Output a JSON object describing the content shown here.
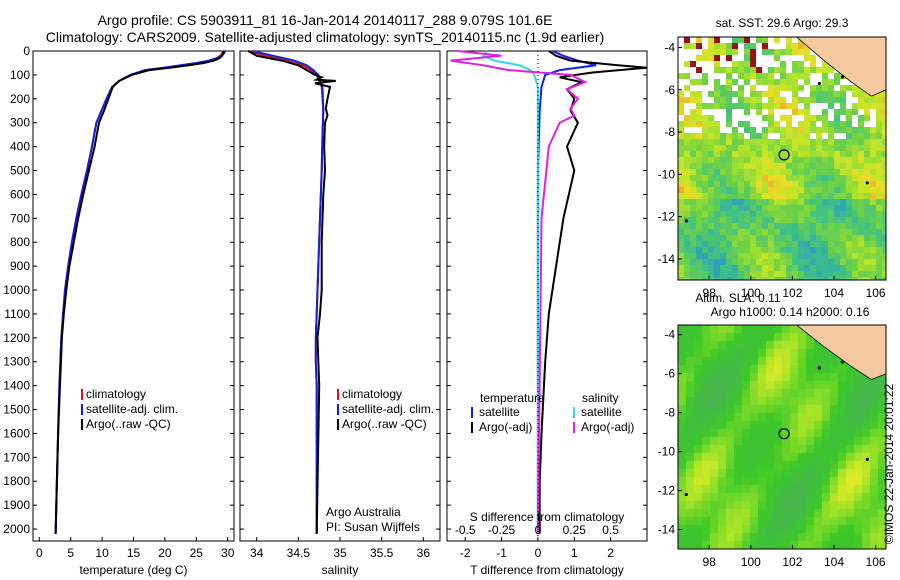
{
  "header": {
    "title_line1": "Argo profile: CS 5903911_81 16-Jan-2014 20140117_288 9.079S 101.6E",
    "title_line2": "Climatology: CARS2009. Satellite-adjusted climatology: synTS_20140115.nc (1.9d earlier)"
  },
  "colors": {
    "climatology": "#e01010",
    "satellite": "#1020e0",
    "argo": "#000000",
    "satellite_salinity": "#30d8e8",
    "argo_adj_salinity": "#e020e0",
    "land": "#f6c9a0"
  },
  "chart_data": [
    {
      "id": "temperature",
      "type": "line",
      "xlabel": "temperature (deg C)",
      "xlim": [
        -1,
        31
      ],
      "xticks": [
        0,
        5,
        10,
        15,
        20,
        25,
        30
      ],
      "ylim": [
        2050,
        0
      ],
      "yticks": [
        0,
        100,
        200,
        300,
        400,
        500,
        600,
        700,
        800,
        900,
        1000,
        1100,
        1200,
        1300,
        1400,
        1500,
        1600,
        1700,
        1800,
        1900,
        2000
      ],
      "legend": [
        "climatology",
        "satellite-adj. clim.",
        "Argo(..raw -QC)"
      ],
      "series": [
        {
          "name": "climatology",
          "x": [
            29.2,
            29.1,
            28.8,
            28.2,
            27.2,
            25.5,
            23,
            20.2,
            17,
            14.6,
            12.8,
            11.6,
            10.7,
            9.9,
            9.1,
            8.4,
            7.6,
            6.7,
            5.9,
            5.2,
            4.6,
            4.1,
            3.8,
            3.5,
            3.2,
            3.0,
            2.8,
            2.6
          ],
          "y": [
            0,
            10,
            20,
            30,
            40,
            50,
            60,
            70,
            80,
            100,
            125,
            150,
            200,
            250,
            300,
            400,
            500,
            600,
            700,
            800,
            900,
            1000,
            1100,
            1200,
            1400,
            1600,
            1800,
            2020
          ]
        },
        {
          "name": "satellite-adj. clim.",
          "x": [
            29.6,
            29.4,
            29.0,
            28.3,
            27.0,
            25.0,
            22.5,
            19.8,
            16.8,
            14.5,
            12.7,
            11.6,
            10.7,
            9.9,
            9.1,
            8.4,
            7.6,
            6.7,
            5.9,
            5.2,
            4.6,
            4.1,
            3.8,
            3.5,
            3.2,
            3.0,
            2.8,
            2.6
          ],
          "y": [
            0,
            10,
            20,
            30,
            40,
            50,
            60,
            70,
            80,
            100,
            125,
            150,
            200,
            250,
            300,
            400,
            500,
            600,
            700,
            800,
            900,
            1000,
            1100,
            1200,
            1400,
            1600,
            1800,
            2020
          ]
        },
        {
          "name": "Argo(..raw -QC)",
          "x": [
            29.3,
            29.3,
            29.1,
            28.7,
            27.8,
            26.2,
            23.8,
            20.8,
            17.5,
            14.7,
            12.7,
            11.7,
            11.0,
            10.3,
            9.5,
            8.8,
            7.9,
            7.0,
            6.2,
            5.5,
            4.8,
            4.3,
            3.9,
            3.6,
            3.3,
            3.0,
            2.8,
            2.6
          ],
          "y": [
            0,
            10,
            20,
            30,
            40,
            50,
            60,
            70,
            80,
            100,
            125,
            150,
            200,
            250,
            300,
            400,
            500,
            600,
            700,
            800,
            900,
            1000,
            1100,
            1200,
            1400,
            1600,
            1800,
            2020
          ]
        }
      ]
    },
    {
      "id": "salinity",
      "type": "line",
      "xlabel": "salinity",
      "xlim": [
        33.8,
        36.2
      ],
      "xticks": [
        34,
        34.5,
        35,
        35.5,
        36
      ],
      "ylim": [
        2050,
        0
      ],
      "legend": [
        "climatology",
        "satellite-adj. clim.",
        "Argo(..raw -QC)"
      ],
      "annotation": [
        "Argo Australia",
        "PI: Susan Wijffels"
      ],
      "series": [
        {
          "name": "climatology",
          "x": [
            33.9,
            34.1,
            34.35,
            34.55,
            34.65,
            34.72,
            34.78,
            34.8,
            34.79,
            34.78,
            34.76,
            34.74,
            34.72,
            34.71,
            34.71,
            34.72,
            34.72,
            34.72,
            34.72,
            34.72,
            34.72
          ],
          "y": [
            0,
            20,
            40,
            60,
            80,
            100,
            150,
            250,
            350,
            500,
            700,
            900,
            1100,
            1200,
            1300,
            1400,
            1500,
            1600,
            1700,
            1800,
            2020
          ]
        },
        {
          "name": "satellite-adj. clim.",
          "x": [
            33.95,
            34.2,
            34.45,
            34.6,
            34.68,
            34.74,
            34.79,
            34.8,
            34.79,
            34.78,
            34.76,
            34.74,
            34.72,
            34.71,
            34.71,
            34.72,
            34.72,
            34.72,
            34.72,
            34.72,
            34.72
          ],
          "y": [
            0,
            20,
            40,
            60,
            80,
            100,
            150,
            250,
            350,
            500,
            700,
            900,
            1100,
            1200,
            1300,
            1400,
            1500,
            1600,
            1700,
            1800,
            2020
          ]
        },
        {
          "name": "Argo(..raw -QC)",
          "x": [
            33.9,
            34.0,
            34.3,
            34.5,
            34.6,
            34.7,
            34.78,
            34.72,
            34.95,
            34.7,
            34.88,
            34.85,
            34.83,
            34.85,
            34.82,
            34.81,
            34.82,
            34.8,
            34.79,
            34.78,
            34.78,
            34.78,
            34.76,
            34.73,
            34.75,
            34.72
          ],
          "y": [
            0,
            20,
            40,
            60,
            80,
            100,
            110,
            120,
            125,
            135,
            150,
            200,
            240,
            270,
            300,
            400,
            500,
            600,
            700,
            800,
            900,
            1000,
            1100,
            1200,
            1400,
            2020
          ]
        }
      ]
    },
    {
      "id": "difference",
      "type": "line",
      "xlabel": "T difference from climatology",
      "xlabel_top": "S difference from climatology",
      "xlim": [
        -2.5,
        3
      ],
      "xticks": [
        -2,
        -1,
        0,
        1,
        2
      ],
      "xticks_top": [
        "-0.5",
        "-0.25",
        "0",
        "0.25",
        "0.5"
      ],
      "ylim": [
        2050,
        0
      ],
      "legend_left_title": "temperature",
      "legend_right_title": "salinity",
      "legend": [
        "satellite",
        "Argo(-adj)",
        "satellite",
        "Argo(-adj)"
      ],
      "series": [
        {
          "name": "satellite",
          "x": [
            0.4,
            0.7,
            1.1,
            1.6,
            0.6,
            0.2,
            0.1,
            0.05,
            0.0,
            0.0,
            0.0,
            0.0,
            0.0
          ],
          "y": [
            0,
            20,
            40,
            60,
            80,
            100,
            150,
            250,
            500,
            800,
            1200,
            1600,
            2020
          ]
        },
        {
          "name": "Argo(-adj)",
          "x": [
            0.3,
            0.5,
            0.9,
            2.2,
            3.0,
            1.5,
            0.6,
            1.2,
            0.8,
            1.0,
            0.9,
            1.1,
            0.8,
            1.0,
            0.7,
            0.5,
            0.3,
            0.2,
            0.1,
            0.05,
            0.05
          ],
          "y": [
            0,
            20,
            40,
            60,
            70,
            90,
            110,
            130,
            160,
            200,
            250,
            300,
            400,
            500,
            700,
            900,
            1100,
            1300,
            1600,
            1800,
            2020
          ]
        },
        {
          "name": "satellite salinity",
          "x": [
            -1.4,
            -1.5,
            -1.2,
            -0.5,
            -0.2,
            -0.1,
            0.0,
            0.0,
            0.0,
            0.0,
            0.0,
            0.0
          ],
          "y": [
            0,
            20,
            40,
            60,
            80,
            100,
            150,
            250,
            500,
            800,
            1200,
            2020
          ]
        },
        {
          "name": "Argo(-adj) salinity",
          "x": [
            -2.2,
            -1.0,
            -2.4,
            -1.5,
            -0.8,
            0.9,
            1.3,
            0.8,
            1.1,
            0.9,
            1.0,
            0.6,
            0.3,
            0.1,
            0.0
          ],
          "y": [
            0,
            20,
            40,
            60,
            80,
            100,
            130,
            160,
            200,
            240,
            270,
            300,
            400,
            700,
            2020
          ]
        }
      ]
    },
    {
      "id": "sst_map",
      "type": "heatmap",
      "title": "sat. SST: 29.6  Argo: 29.3",
      "xlim": [
        96.5,
        106.5
      ],
      "ylim": [
        -15,
        -3.5
      ],
      "xticks": [
        98,
        100,
        102,
        104,
        106
      ],
      "yticks": [
        -4,
        -6,
        -8,
        -10,
        -12,
        -14
      ],
      "marker": {
        "lon": 101.6,
        "lat": -9.079
      }
    },
    {
      "id": "sla_map",
      "type": "heatmap",
      "title": "Altim. SLA: 0.11",
      "subtitle": "Argo h1000: 0.14  h2000: 0.16",
      "side_label": "©IMOS 22-Jan-2014 20:01:22",
      "xlim": [
        96.5,
        106.5
      ],
      "ylim": [
        -15,
        -3.5
      ],
      "xticks": [
        98,
        100,
        102,
        104,
        106
      ],
      "yticks": [
        -4,
        -6,
        -8,
        -10,
        -12,
        -14
      ],
      "marker": {
        "lon": 101.6,
        "lat": -9.079
      }
    }
  ]
}
